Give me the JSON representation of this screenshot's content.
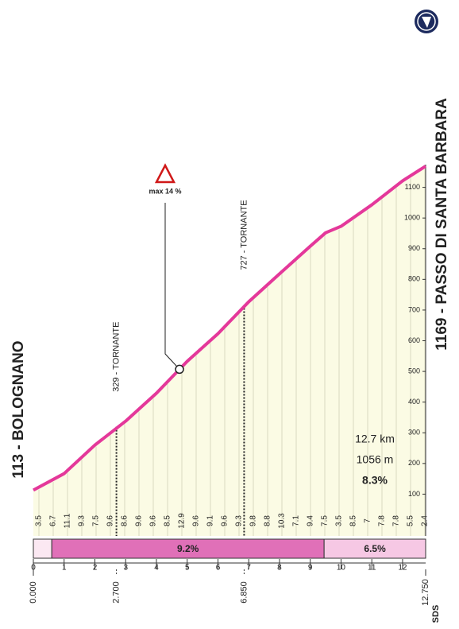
{
  "chart_data": {
    "type": "area",
    "start_label": "113 - BOLOGNANO",
    "end_label": "1169 - PASSO DI SANTA BARBARA",
    "x": [
      0,
      1,
      2,
      3,
      4,
      5,
      6,
      7,
      8,
      9,
      9.5,
      10,
      11,
      12,
      12.75
    ],
    "series": [
      {
        "color": "#e4389a",
        "fill": "#fbfbe4",
        "values": [
          113,
          167,
          260,
          338,
          429,
          533,
          623,
          727,
          818,
          908,
          952,
          973,
          1043,
          1121,
          1169
        ]
      }
    ],
    "xlim": [
      0,
      12.75
    ],
    "xticks": [
      0,
      1,
      2,
      3,
      4,
      5,
      6,
      7,
      8,
      9,
      10,
      11,
      12
    ],
    "ylim": [
      0,
      1200
    ],
    "yticks": [
      100,
      200,
      300,
      400,
      500,
      600,
      700,
      800,
      900,
      1000,
      1100
    ],
    "distance_labels": [
      {
        "value": 0,
        "label": "0.000"
      },
      {
        "value": 2.7,
        "label": "2.700"
      },
      {
        "value": 6.85,
        "label": "6.850"
      },
      {
        "value": 12.75,
        "label": "12.750"
      }
    ],
    "gradients": [
      3.5,
      6.7,
      11.1,
      9.3,
      7.5,
      9.6,
      8.6,
      9.6,
      9.6,
      8.5,
      12.9,
      9.6,
      9.1,
      9.6,
      9.3,
      9.8,
      8.8,
      10.3,
      7.1,
      9.4,
      7.5,
      3.5,
      8.5,
      7.0,
      7.8,
      7.8,
      5.5,
      2.4
    ],
    "gradient_bars": {
      "starts": [
        0,
        0.6,
        9.45
      ],
      "ends": [
        0.6,
        9.45,
        12.75
      ],
      "values": [
        null,
        9.2,
        6.5
      ],
      "value_labels": [
        null,
        "9.2%",
        "6.5%"
      ],
      "colors": [
        "#fbe8f2",
        "#e070b8",
        "#f6c8e4"
      ]
    },
    "annotations": [
      {
        "x": 2.7,
        "text": "329 - TORNANTE"
      },
      {
        "x": 6.85,
        "text": "727 - TORNANTE"
      }
    ],
    "max_gradient": {
      "x": 4.75,
      "text": "max 14 %"
    },
    "summary": [
      "12.7 km",
      "1056 m",
      "8.3%"
    ],
    "logo": "SDS"
  }
}
